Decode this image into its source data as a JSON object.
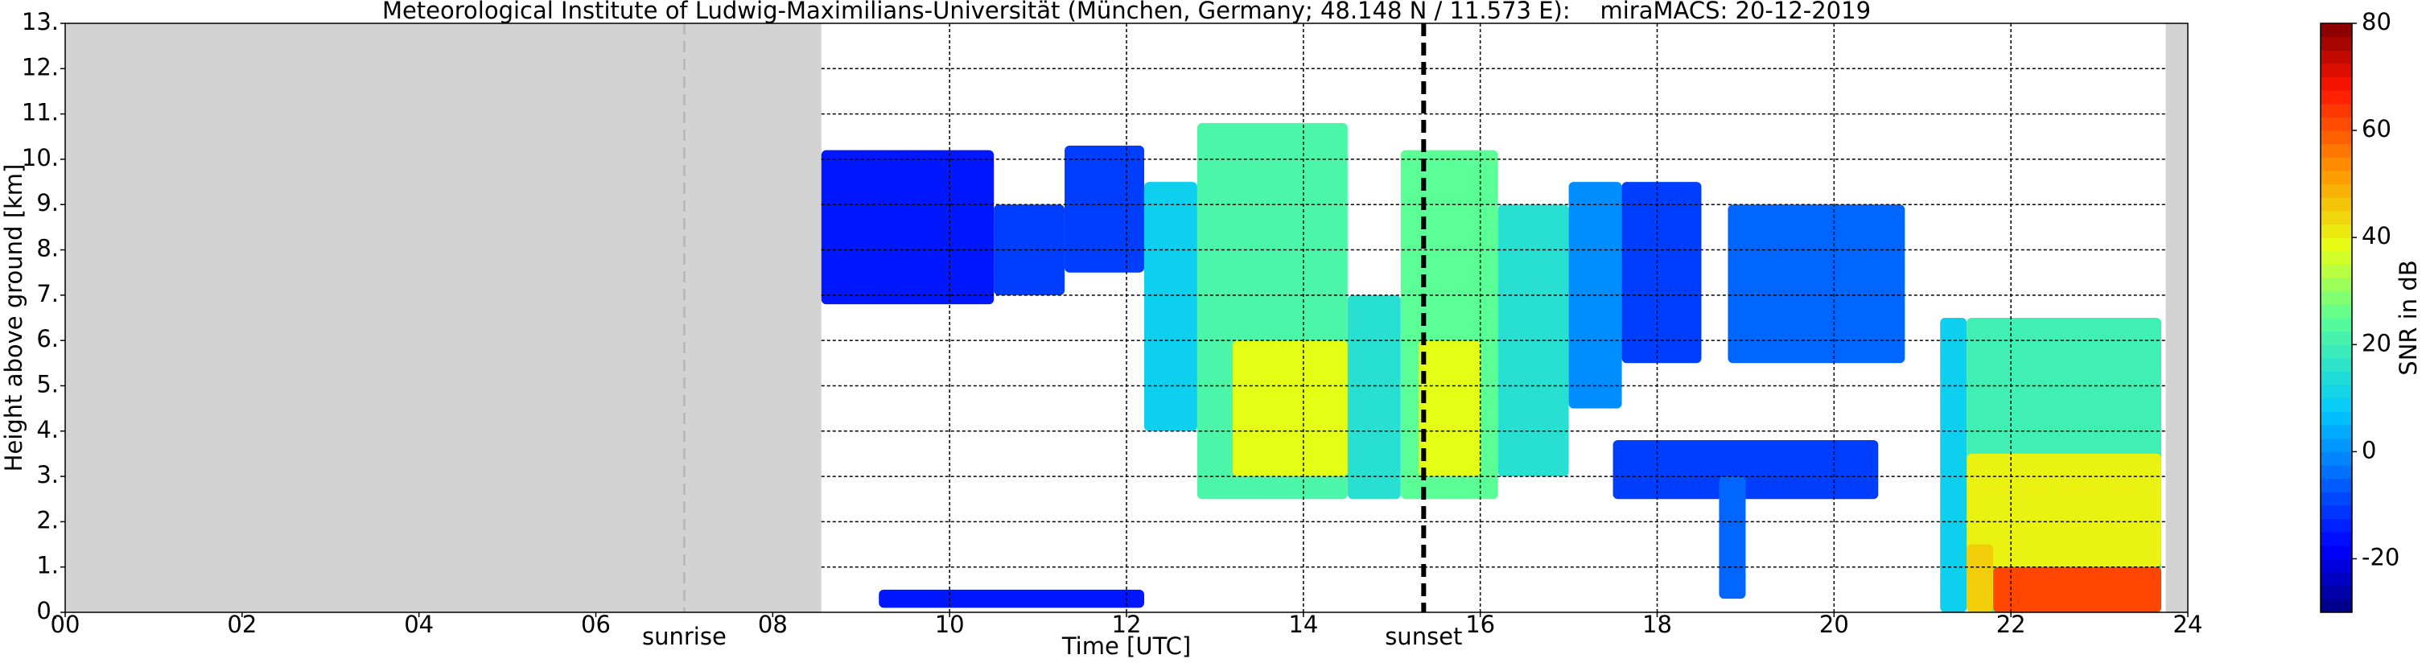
{
  "chart_data": {
    "type": "radar-timeheight",
    "title": "Meteorological Institute of Ludwig-Maximilians-Universität (München, Germany; 48.148 N / 11.573 E):    miraMACS: 20-12-2019",
    "x_label": "Time [UTC]",
    "y_label": "Height above ground [km]",
    "colorbar_label": "SNR in dB",
    "xlim": [
      0,
      24
    ],
    "xticks": [
      {
        "value": 0,
        "label": "00"
      },
      {
        "value": 2,
        "label": "02"
      },
      {
        "value": 4,
        "label": "04"
      },
      {
        "value": 6,
        "label": "06"
      },
      {
        "value": 8,
        "label": "08"
      },
      10,
      12,
      14,
      16,
      18,
      20,
      22,
      24
    ],
    "ylim": [
      0,
      13
    ],
    "yticks": [
      {
        "value": 0,
        "label": "0."
      },
      {
        "value": 1,
        "label": "1."
      },
      {
        "value": 2,
        "label": "2."
      },
      {
        "value": 3,
        "label": "3."
      },
      {
        "value": 4,
        "label": "4."
      },
      {
        "value": 5,
        "label": "5."
      },
      {
        "value": 6,
        "label": "6."
      },
      {
        "value": 7,
        "label": "7."
      },
      {
        "value": 8,
        "label": "8."
      },
      {
        "value": 9,
        "label": "9."
      },
      {
        "value": 10,
        "label": "10."
      },
      {
        "value": 11,
        "label": "11."
      },
      {
        "value": 12,
        "label": "12."
      },
      {
        "value": 13,
        "label": "13."
      }
    ],
    "clim": [
      -30,
      80
    ],
    "cticks": [
      -20,
      0,
      20,
      40,
      60,
      80
    ],
    "grid": true,
    "no_data_periods": [
      [
        0,
        8.55
      ],
      [
        23.75,
        24
      ]
    ],
    "sunrise": {
      "x": 7.0,
      "label": "sunrise"
    },
    "sunset": {
      "x": 15.36,
      "label": "sunset"
    },
    "echoes": [
      {
        "x": [
          8.55,
          10.5
        ],
        "y": [
          6.8,
          10.2
        ],
        "snr": -15
      },
      {
        "x": [
          10.5,
          11.3
        ],
        "y": [
          7.0,
          9.0
        ],
        "snr": -10
      },
      {
        "x": [
          11.3,
          12.2
        ],
        "y": [
          7.5,
          10.3
        ],
        "snr": -10
      },
      {
        "x": [
          12.2,
          12.8
        ],
        "y": [
          4.0,
          9.5
        ],
        "snr": 10
      },
      {
        "x": [
          12.8,
          14.5
        ],
        "y": [
          2.5,
          10.8
        ],
        "snr": 22
      },
      {
        "x": [
          13.2,
          14.5
        ],
        "y": [
          3.0,
          6.0
        ],
        "snr": 38
      },
      {
        "x": [
          14.5,
          15.1
        ],
        "y": [
          2.5,
          7.0
        ],
        "snr": 15
      },
      {
        "x": [
          15.1,
          16.2
        ],
        "y": [
          2.5,
          10.2
        ],
        "snr": 25
      },
      {
        "x": [
          15.3,
          16.0
        ],
        "y": [
          3.0,
          6.0
        ],
        "snr": 38
      },
      {
        "x": [
          16.2,
          17.0
        ],
        "y": [
          3.0,
          9.0
        ],
        "snr": 15
      },
      {
        "x": [
          17.0,
          17.6
        ],
        "y": [
          4.5,
          9.5
        ],
        "snr": 0
      },
      {
        "x": [
          17.6,
          18.5
        ],
        "y": [
          5.5,
          9.5
        ],
        "snr": -10
      },
      {
        "x": [
          18.8,
          20.8
        ],
        "y": [
          5.5,
          9.0
        ],
        "snr": -5
      },
      {
        "x": [
          17.5,
          20.5
        ],
        "y": [
          2.5,
          3.8
        ],
        "snr": -10
      },
      {
        "x": [
          18.7,
          19.0
        ],
        "y": [
          0.3,
          3.0
        ],
        "snr": -5
      },
      {
        "x": [
          9.2,
          12.2
        ],
        "y": [
          0.1,
          0.5
        ],
        "snr": -15
      },
      {
        "x": [
          21.2,
          21.5
        ],
        "y": [
          0.0,
          6.5
        ],
        "snr": 10
      },
      {
        "x": [
          21.5,
          23.7
        ],
        "y": [
          0.0,
          6.5
        ],
        "snr": 20
      },
      {
        "x": [
          21.5,
          23.7
        ],
        "y": [
          1.0,
          3.5
        ],
        "snr": 40
      },
      {
        "x": [
          21.5,
          21.8
        ],
        "y": [
          0.0,
          1.5
        ],
        "snr": 45
      },
      {
        "x": [
          21.8,
          23.7
        ],
        "y": [
          0.0,
          1.0
        ],
        "snr": 62
      }
    ]
  }
}
